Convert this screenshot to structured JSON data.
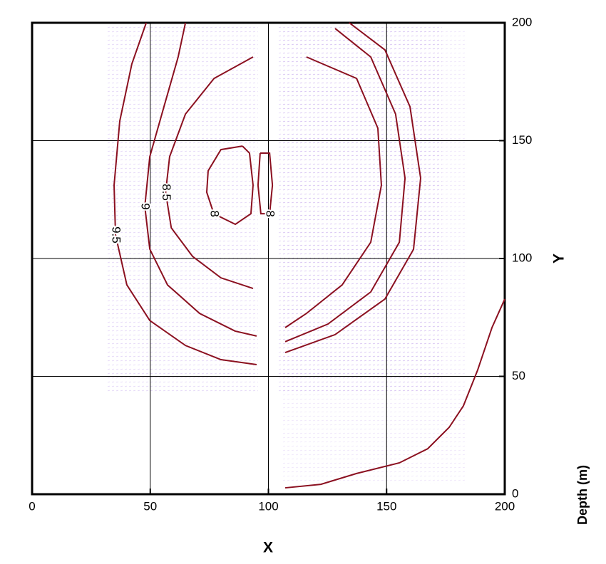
{
  "chart_data": {
    "type": "contour",
    "x_label": "X",
    "y_label": "Y",
    "colorbar_label": "Depth (m)",
    "xlim": [
      0,
      200
    ],
    "ylim": [
      0,
      200
    ],
    "xticks": [
      0,
      50,
      100,
      150,
      200
    ],
    "yticks": [
      0,
      50,
      100,
      150,
      200
    ],
    "grid": true,
    "color": "#8b1020",
    "contours": [
      {
        "level": 9.5,
        "x": [
          48.3,
          42.2,
          37.1,
          34.7,
          35.3,
          40.1,
          49.8,
          64.9,
          79.9,
          95.0
        ],
        "y": [
          200,
          182.5,
          158.3,
          131.1,
          110.0,
          88.8,
          73.7,
          63.1,
          57.1,
          55.0
        ]
      },
      {
        "level": 9,
        "x": [
          64.9,
          61.8,
          55.8,
          49.8,
          47.7,
          49.8,
          57.3,
          70.9,
          85.9,
          95.0
        ],
        "y": [
          200,
          185.5,
          164.4,
          143.2,
          122.1,
          104.0,
          88.8,
          76.7,
          69.2,
          67.1
        ]
      },
      {
        "level": 8.5,
        "x": [
          93.5,
          77.0,
          64.9,
          58.2,
          56.5,
          58.9,
          67.9,
          79.9,
          93.5
        ],
        "y": [
          185.5,
          176.4,
          161.3,
          143.2,
          128.1,
          113.0,
          100.9,
          91.8,
          87.3
        ]
      },
      {
        "level": 8,
        "x": [
          89.0,
          79.9,
          74.5,
          73.9,
          76.9,
          86.0,
          92.6,
          93.5,
          92.0,
          89.0
        ],
        "y": [
          147.7,
          146.2,
          137.2,
          128.1,
          119.0,
          114.5,
          119.0,
          131.1,
          144.7,
          147.7
        ]
      },
      {
        "level": 8,
        "x": [
          96.5,
          95.6,
          96.8,
          100.5,
          101.7,
          100.5,
          96.5
        ],
        "y": [
          144.7,
          131.1,
          119.0,
          119.0,
          131.1,
          144.7,
          144.7
        ]
      },
      {
        "x": [
          134.2,
          149.3,
          159.9,
          164.4,
          161.4,
          149.3,
          128.2,
          107.1
        ],
        "y": [
          200,
          188.5,
          164.4,
          134.1,
          103.9,
          82.8,
          67.7,
          60.1
        ]
      },
      {
        "x": [
          128.2,
          143.3,
          153.8,
          157.8,
          155.4,
          143.3,
          125.2,
          107.1
        ],
        "y": [
          197.6,
          185.5,
          161.3,
          134.1,
          106.9,
          85.8,
          72.2,
          64.7
        ]
      },
      {
        "x": [
          116.1,
          137.3,
          146.3,
          147.8,
          143.3,
          131.2,
          116.1,
          107.1
        ],
        "y": [
          185.5,
          176.4,
          155.3,
          131.1,
          106.9,
          88.8,
          76.7,
          70.7
        ]
      },
      {
        "x": [
          200,
          194.6,
          188.5,
          182.5,
          176.5,
          167.4,
          155.4,
          137.3,
          122.2,
          107.1
        ],
        "y": [
          82.8,
          70.7,
          52.6,
          37.5,
          28.4,
          19.3,
          13.3,
          8.8,
          4.2,
          2.7
        ]
      }
    ]
  }
}
